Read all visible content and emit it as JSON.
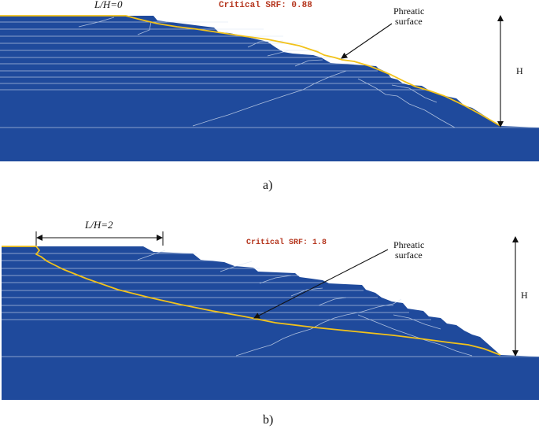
{
  "colors": {
    "soil": "#1f4a9c",
    "layer_line": "#dbe5f3",
    "phreatic": "#f2c21a",
    "srf_text": "#b5361e",
    "annotation": "#111111"
  },
  "panels": [
    {
      "id": "a",
      "caption": "a)",
      "lh_label": "L/H=0",
      "srf_text": "Critical SRF: 0.88",
      "phreatic_label_line1": "Phreatic",
      "phreatic_label_line2": "surface",
      "height_label": "H"
    },
    {
      "id": "b",
      "caption": "b)",
      "lh_label": "L/H=2",
      "srf_text": "Critical SRF: 1.8",
      "phreatic_label_line1": "Phreatic",
      "phreatic_label_line2": "surface",
      "height_label": "H"
    }
  ]
}
